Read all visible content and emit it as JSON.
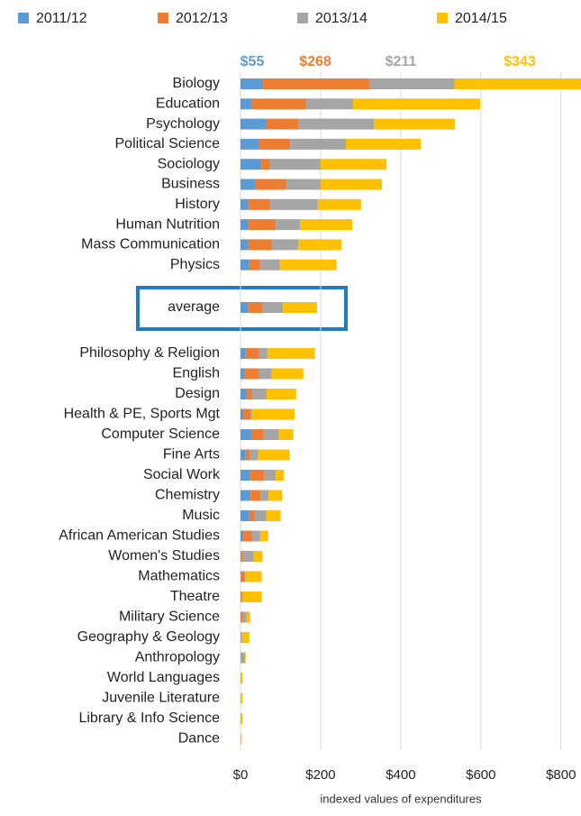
{
  "chart_data": {
    "type": "stacked-bar-horizontal",
    "x_label": "indexed values of expenditures",
    "categories": [
      "Biology",
      "Education",
      "Psychology",
      "Political Science",
      "Sociology",
      "Business",
      "History",
      "Human Nutrition",
      "Mass Communication",
      "Physics",
      "average",
      "Philosophy & Religion",
      "English",
      "Design",
      "Health & PE, Sports Mgt",
      "Computer Science",
      "Fine Arts",
      "Social Work",
      "Chemistry",
      "Music",
      "African American Studies",
      "Women's Studies",
      "Mathematics",
      "Theatre",
      "Military Science",
      "Geography & Geology",
      "Anthropology",
      "World Languages",
      "Juvenile Literature",
      "Library & Info Science",
      "Dance"
    ],
    "series": [
      {
        "name": "2011/12",
        "color": "#5b9bd5",
        "values": [
          55,
          29,
          65,
          45,
          52,
          36,
          18,
          18,
          18,
          22,
          20,
          13,
          9,
          16,
          7,
          27,
          13,
          25,
          25,
          22,
          7,
          2,
          0,
          2,
          2,
          0,
          0,
          0,
          0,
          0,
          0
        ],
        "value_labels": [
          "$55",
          null,
          null,
          null,
          null,
          null,
          null,
          null,
          null,
          null,
          null,
          null,
          null,
          null,
          null,
          null,
          null,
          null,
          null,
          null,
          null,
          null,
          null,
          null,
          null,
          null,
          null,
          null,
          null,
          null,
          null
        ]
      },
      {
        "name": "2012/13",
        "color": "#ed7d31",
        "values": [
          268,
          135,
          79,
          79,
          22,
          79,
          56,
          70,
          61,
          27,
          34,
          34,
          38,
          13,
          18,
          31,
          11,
          34,
          25,
          13,
          22,
          4,
          11,
          2,
          4,
          2,
          0,
          0,
          0,
          0,
          0
        ],
        "value_labels": [
          "$268",
          null,
          null,
          null,
          null,
          null,
          null,
          null,
          null,
          null,
          null,
          null,
          null,
          null,
          null,
          null,
          null,
          null,
          null,
          null,
          null,
          null,
          null,
          null,
          null,
          null,
          null,
          null,
          null,
          null,
          null
        ]
      },
      {
        "name": "2013/14",
        "color": "#a5a5a5",
        "values": [
          211,
          117,
          189,
          139,
          126,
          85,
          119,
          61,
          65,
          49,
          52,
          20,
          31,
          36,
          4,
          38,
          20,
          29,
          20,
          29,
          20,
          27,
          2,
          2,
          9,
          2,
          11,
          1,
          0,
          1,
          0
        ],
        "value_labels": [
          "$211",
          null,
          null,
          null,
          null,
          null,
          null,
          null,
          null,
          null,
          null,
          null,
          null,
          null,
          null,
          null,
          null,
          null,
          null,
          null,
          null,
          null,
          null,
          null,
          null,
          null,
          null,
          null,
          null,
          null,
          null
        ]
      },
      {
        "name": "2014/15",
        "color": "#ffc000",
        "values": [
          343,
          317,
          202,
          187,
          164,
          153,
          108,
          130,
          108,
          142,
          85,
          119,
          79,
          74,
          106,
          36,
          79,
          20,
          34,
          36,
          20,
          22,
          40,
          47,
          9,
          18,
          2,
          4,
          5,
          4,
          3
        ],
        "value_labels": [
          "$343",
          null,
          null,
          null,
          null,
          null,
          null,
          null,
          null,
          null,
          null,
          null,
          null,
          null,
          null,
          null,
          null,
          null,
          null,
          null,
          null,
          null,
          null,
          null,
          null,
          null,
          null,
          null,
          null,
          null,
          null
        ]
      }
    ],
    "xlim": [
      0,
      850
    ],
    "xticks": [
      {
        "value": 0,
        "label": "$0"
      },
      {
        "value": 200,
        "label": "$200"
      },
      {
        "value": 400,
        "label": "$400"
      },
      {
        "value": 600,
        "label": "$600"
      },
      {
        "value": 800,
        "label": "$800"
      }
    ],
    "grid": true
  }
}
